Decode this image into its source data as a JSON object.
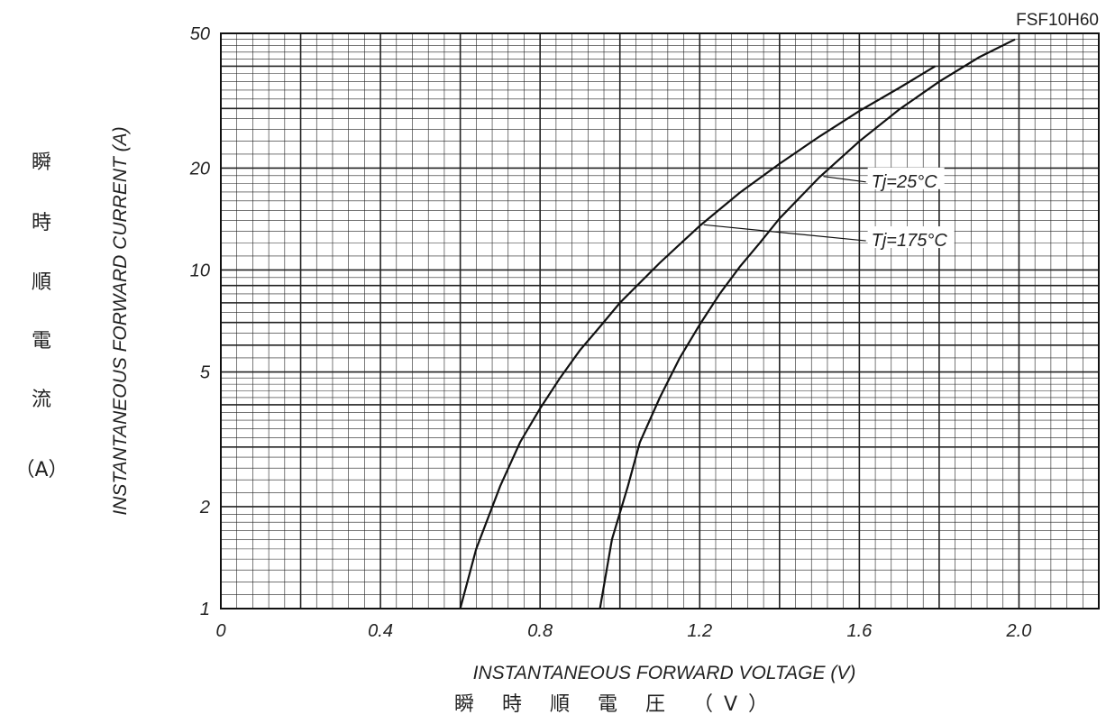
{
  "chart_data": {
    "type": "line",
    "part_number": "FSF10H60",
    "xlabel": "INSTANTANEOUS FORWARD VOLTAGE (V)",
    "xlabel_jp": "瞬 時 順 電 圧 （V）",
    "ylabel": "INSTANTANEOUS FORWARD CURRENT (A)",
    "ylabel_jp": [
      "瞬",
      "時",
      "順",
      "電",
      "流",
      "（A）"
    ],
    "xlim": [
      0,
      2.2
    ],
    "ylim": [
      1,
      50
    ],
    "y_scale": "log",
    "grid": true,
    "x_ticks": [
      {
        "value": 0,
        "label": "0"
      },
      {
        "value": 0.4,
        "label": "0.4"
      },
      {
        "value": 0.8,
        "label": "0.8"
      },
      {
        "value": 1.2,
        "label": "1.2"
      },
      {
        "value": 1.6,
        "label": "1.6"
      },
      {
        "value": 2.0,
        "label": "2.0"
      }
    ],
    "y_ticks": [
      {
        "value": 1,
        "label": "1"
      },
      {
        "value": 2,
        "label": "2"
      },
      {
        "value": 5,
        "label": "5"
      },
      {
        "value": 10,
        "label": "10"
      },
      {
        "value": 20,
        "label": "20"
      },
      {
        "value": 50,
        "label": "50"
      }
    ],
    "series": [
      {
        "name": "Tj=25°C",
        "points": [
          [
            0.95,
            1
          ],
          [
            0.98,
            1.6
          ],
          [
            1.02,
            2.3
          ],
          [
            1.05,
            3.1
          ],
          [
            1.1,
            4.2
          ],
          [
            1.15,
            5.5
          ],
          [
            1.2,
            6.9
          ],
          [
            1.25,
            8.5
          ],
          [
            1.3,
            10.2
          ],
          [
            1.35,
            12.0
          ],
          [
            1.4,
            14.2
          ],
          [
            1.5,
            18.8
          ],
          [
            1.6,
            24.0
          ],
          [
            1.7,
            29.8
          ],
          [
            1.8,
            36.0
          ],
          [
            1.9,
            42.5
          ],
          [
            1.99,
            48.0
          ]
        ]
      },
      {
        "name": "Tj=175°C",
        "points": [
          [
            0.6,
            1
          ],
          [
            0.64,
            1.5
          ],
          [
            0.7,
            2.3
          ],
          [
            0.75,
            3.1
          ],
          [
            0.8,
            3.9
          ],
          [
            0.85,
            4.8
          ],
          [
            0.9,
            5.8
          ],
          [
            0.95,
            6.8
          ],
          [
            1.0,
            8.0
          ],
          [
            1.1,
            10.5
          ],
          [
            1.2,
            13.5
          ],
          [
            1.3,
            16.9
          ],
          [
            1.4,
            20.6
          ],
          [
            1.5,
            24.8
          ],
          [
            1.6,
            29.5
          ],
          [
            1.7,
            34.5
          ],
          [
            1.79,
            40.0
          ]
        ]
      }
    ],
    "annotations": [
      {
        "text": "Tj=25°C",
        "series": "Tj=25°C",
        "at": [
          1.51,
          18.9
        ],
        "label_at": [
          1.63,
          18.2
        ]
      },
      {
        "text": "Tj=175°C",
        "series": "Tj=175°C",
        "at": [
          1.21,
          13.6
        ],
        "label_at": [
          1.63,
          12.2
        ]
      }
    ]
  }
}
